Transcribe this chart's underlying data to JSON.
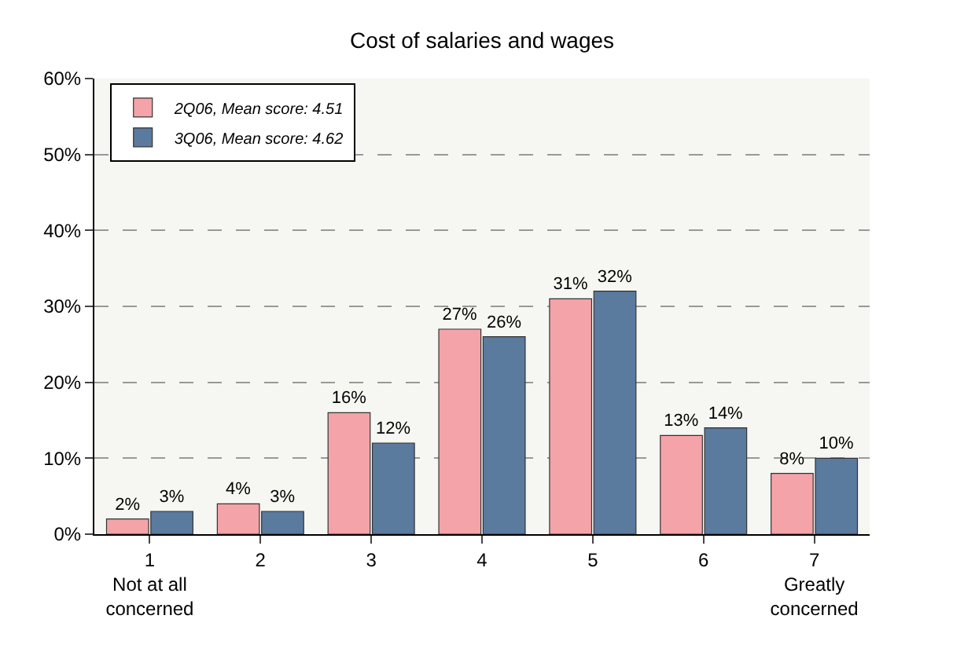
{
  "chart_data": {
    "type": "bar",
    "title": "Cost of salaries and wages",
    "categories": [
      "1\nNot at all\nconcerned",
      "2",
      "3",
      "4",
      "5",
      "6",
      "7\nGreatly\nconcerned"
    ],
    "series": [
      {
        "name": "2Q06, Mean score: 4.51",
        "color": "#f4a3a8",
        "values": [
          2,
          4,
          16,
          27,
          31,
          13,
          8
        ],
        "value_labels": [
          "2%",
          "4%",
          "16%",
          "27%",
          "31%",
          "13%",
          "8%"
        ]
      },
      {
        "name": "3Q06, Mean score: 4.62",
        "color": "#5a7a9e",
        "values": [
          3,
          3,
          12,
          26,
          32,
          14,
          10
        ],
        "value_labels": [
          "3%",
          "3%",
          "12%",
          "26%",
          "32%",
          "14%",
          "10%"
        ]
      }
    ],
    "ylim": [
      0,
      60
    ],
    "yticks": [
      {
        "value": 0,
        "label": "0%"
      },
      {
        "value": 10,
        "label": "10%"
      },
      {
        "value": 20,
        "label": "20%"
      },
      {
        "value": 30,
        "label": "30%"
      },
      {
        "value": 40,
        "label": "40%"
      },
      {
        "value": 50,
        "label": "50%"
      },
      {
        "value": 60,
        "label": "60%"
      }
    ],
    "grid": "y",
    "legend": "top left"
  }
}
